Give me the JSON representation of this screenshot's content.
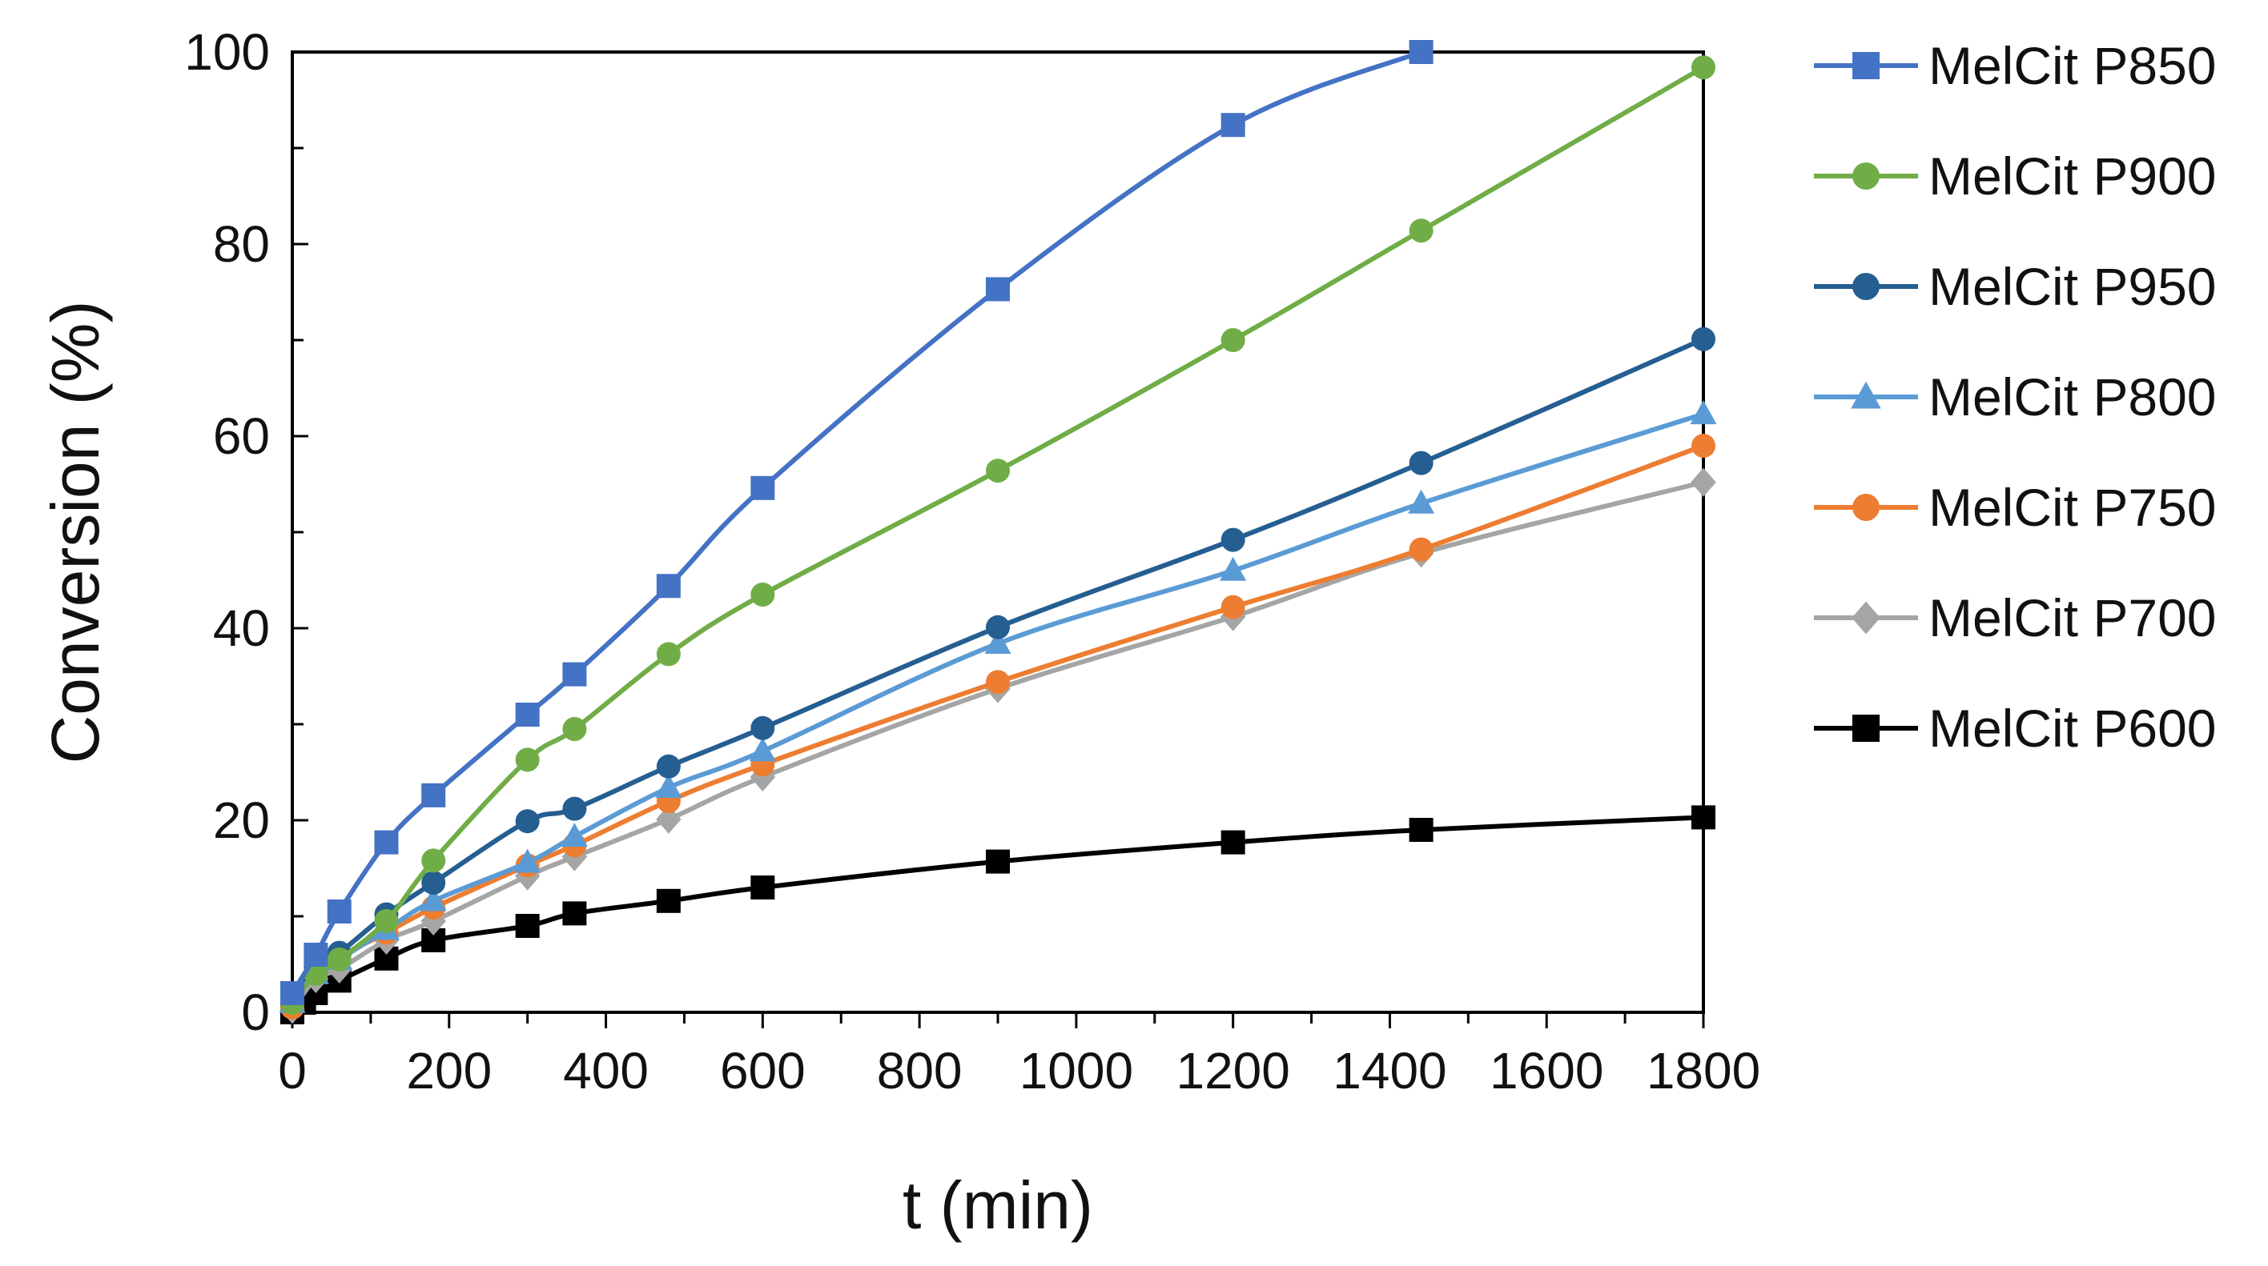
{
  "chart_data": {
    "type": "line",
    "title": "",
    "xlabel": "t (min)",
    "ylabel": "Conversion (%)",
    "xlim": [
      0,
      1800
    ],
    "ylim": [
      0,
      100
    ],
    "x_ticks": [
      0,
      200,
      400,
      600,
      800,
      1000,
      1200,
      1400,
      1600,
      1800
    ],
    "y_ticks": [
      0,
      20,
      40,
      60,
      80,
      100
    ],
    "x_tick_labels": [
      "0",
      "200",
      "400",
      "600",
      "800",
      "1000",
      "1200",
      "1400",
      "1600",
      "1800"
    ],
    "y_tick_labels": [
      "0",
      "20",
      "40",
      "60",
      "80",
      "100"
    ],
    "grid": false,
    "legend_position": "right",
    "series": [
      {
        "name": "MelCit P850",
        "color": "#4472C4",
        "marker": "square",
        "x": [
          0,
          30,
          60,
          120,
          180,
          300,
          360,
          480,
          600,
          900,
          1200,
          1440
        ],
        "values": [
          2,
          6,
          10.5,
          17.7,
          22.6,
          31,
          35.2,
          44.4,
          54.6,
          75.3,
          92.4,
          100
        ]
      },
      {
        "name": "MelCit P900",
        "color": "#70AD47",
        "marker": "circle",
        "x": [
          0,
          30,
          60,
          120,
          180,
          300,
          360,
          480,
          600,
          900,
          1200,
          1440,
          1800
        ],
        "values": [
          1,
          4,
          5.5,
          9.5,
          15.8,
          26.3,
          29.5,
          37.3,
          43.5,
          56.4,
          70,
          81.4,
          98.4
        ]
      },
      {
        "name": "MelCit P950",
        "color": "#255E91",
        "marker": "circle",
        "x": [
          0,
          30,
          60,
          120,
          180,
          300,
          360,
          480,
          600,
          900,
          1200,
          1440,
          1800
        ],
        "values": [
          2,
          4.8,
          6.2,
          10.2,
          13.5,
          19.9,
          21.2,
          25.6,
          29.6,
          40.1,
          49.2,
          57.2,
          70.1
        ]
      },
      {
        "name": "MelCit P800",
        "color": "#5B9BD5",
        "marker": "triangle",
        "x": [
          0,
          30,
          60,
          120,
          180,
          300,
          360,
          480,
          600,
          900,
          1200,
          1440,
          1800
        ],
        "values": [
          1,
          4,
          5.5,
          8.6,
          11.6,
          15.6,
          18.3,
          23.4,
          27.2,
          38.4,
          46,
          53,
          62.3
        ]
      },
      {
        "name": "MelCit P750",
        "color": "#ED7D31",
        "marker": "circle",
        "x": [
          0,
          30,
          60,
          120,
          180,
          300,
          360,
          480,
          600,
          900,
          1200,
          1440,
          1800
        ],
        "values": [
          0.5,
          4.5,
          5.8,
          8.3,
          10.9,
          15.3,
          17.4,
          22,
          25.8,
          34.4,
          42.2,
          48.2,
          59
        ]
      },
      {
        "name": "MelCit P700",
        "color": "#A5A5A5",
        "marker": "diamond",
        "x": [
          0,
          30,
          60,
          120,
          180,
          300,
          360,
          480,
          600,
          900,
          1200,
          1440,
          1800
        ],
        "values": [
          0.3,
          3.5,
          4.5,
          7.5,
          9.5,
          14.2,
          16.2,
          20.1,
          24.5,
          33.7,
          41.2,
          47.8,
          55.2
        ]
      },
      {
        "name": "MelCit P600",
        "color": "#000000",
        "marker": "square",
        "x": [
          0,
          15,
          30,
          60,
          120,
          180,
          300,
          360,
          480,
          600,
          900,
          1200,
          1440,
          1800
        ],
        "values": [
          0,
          1,
          2,
          3.3,
          5.6,
          7.5,
          9,
          10.3,
          11.6,
          13,
          15.7,
          17.7,
          19,
          20.3
        ]
      }
    ]
  }
}
